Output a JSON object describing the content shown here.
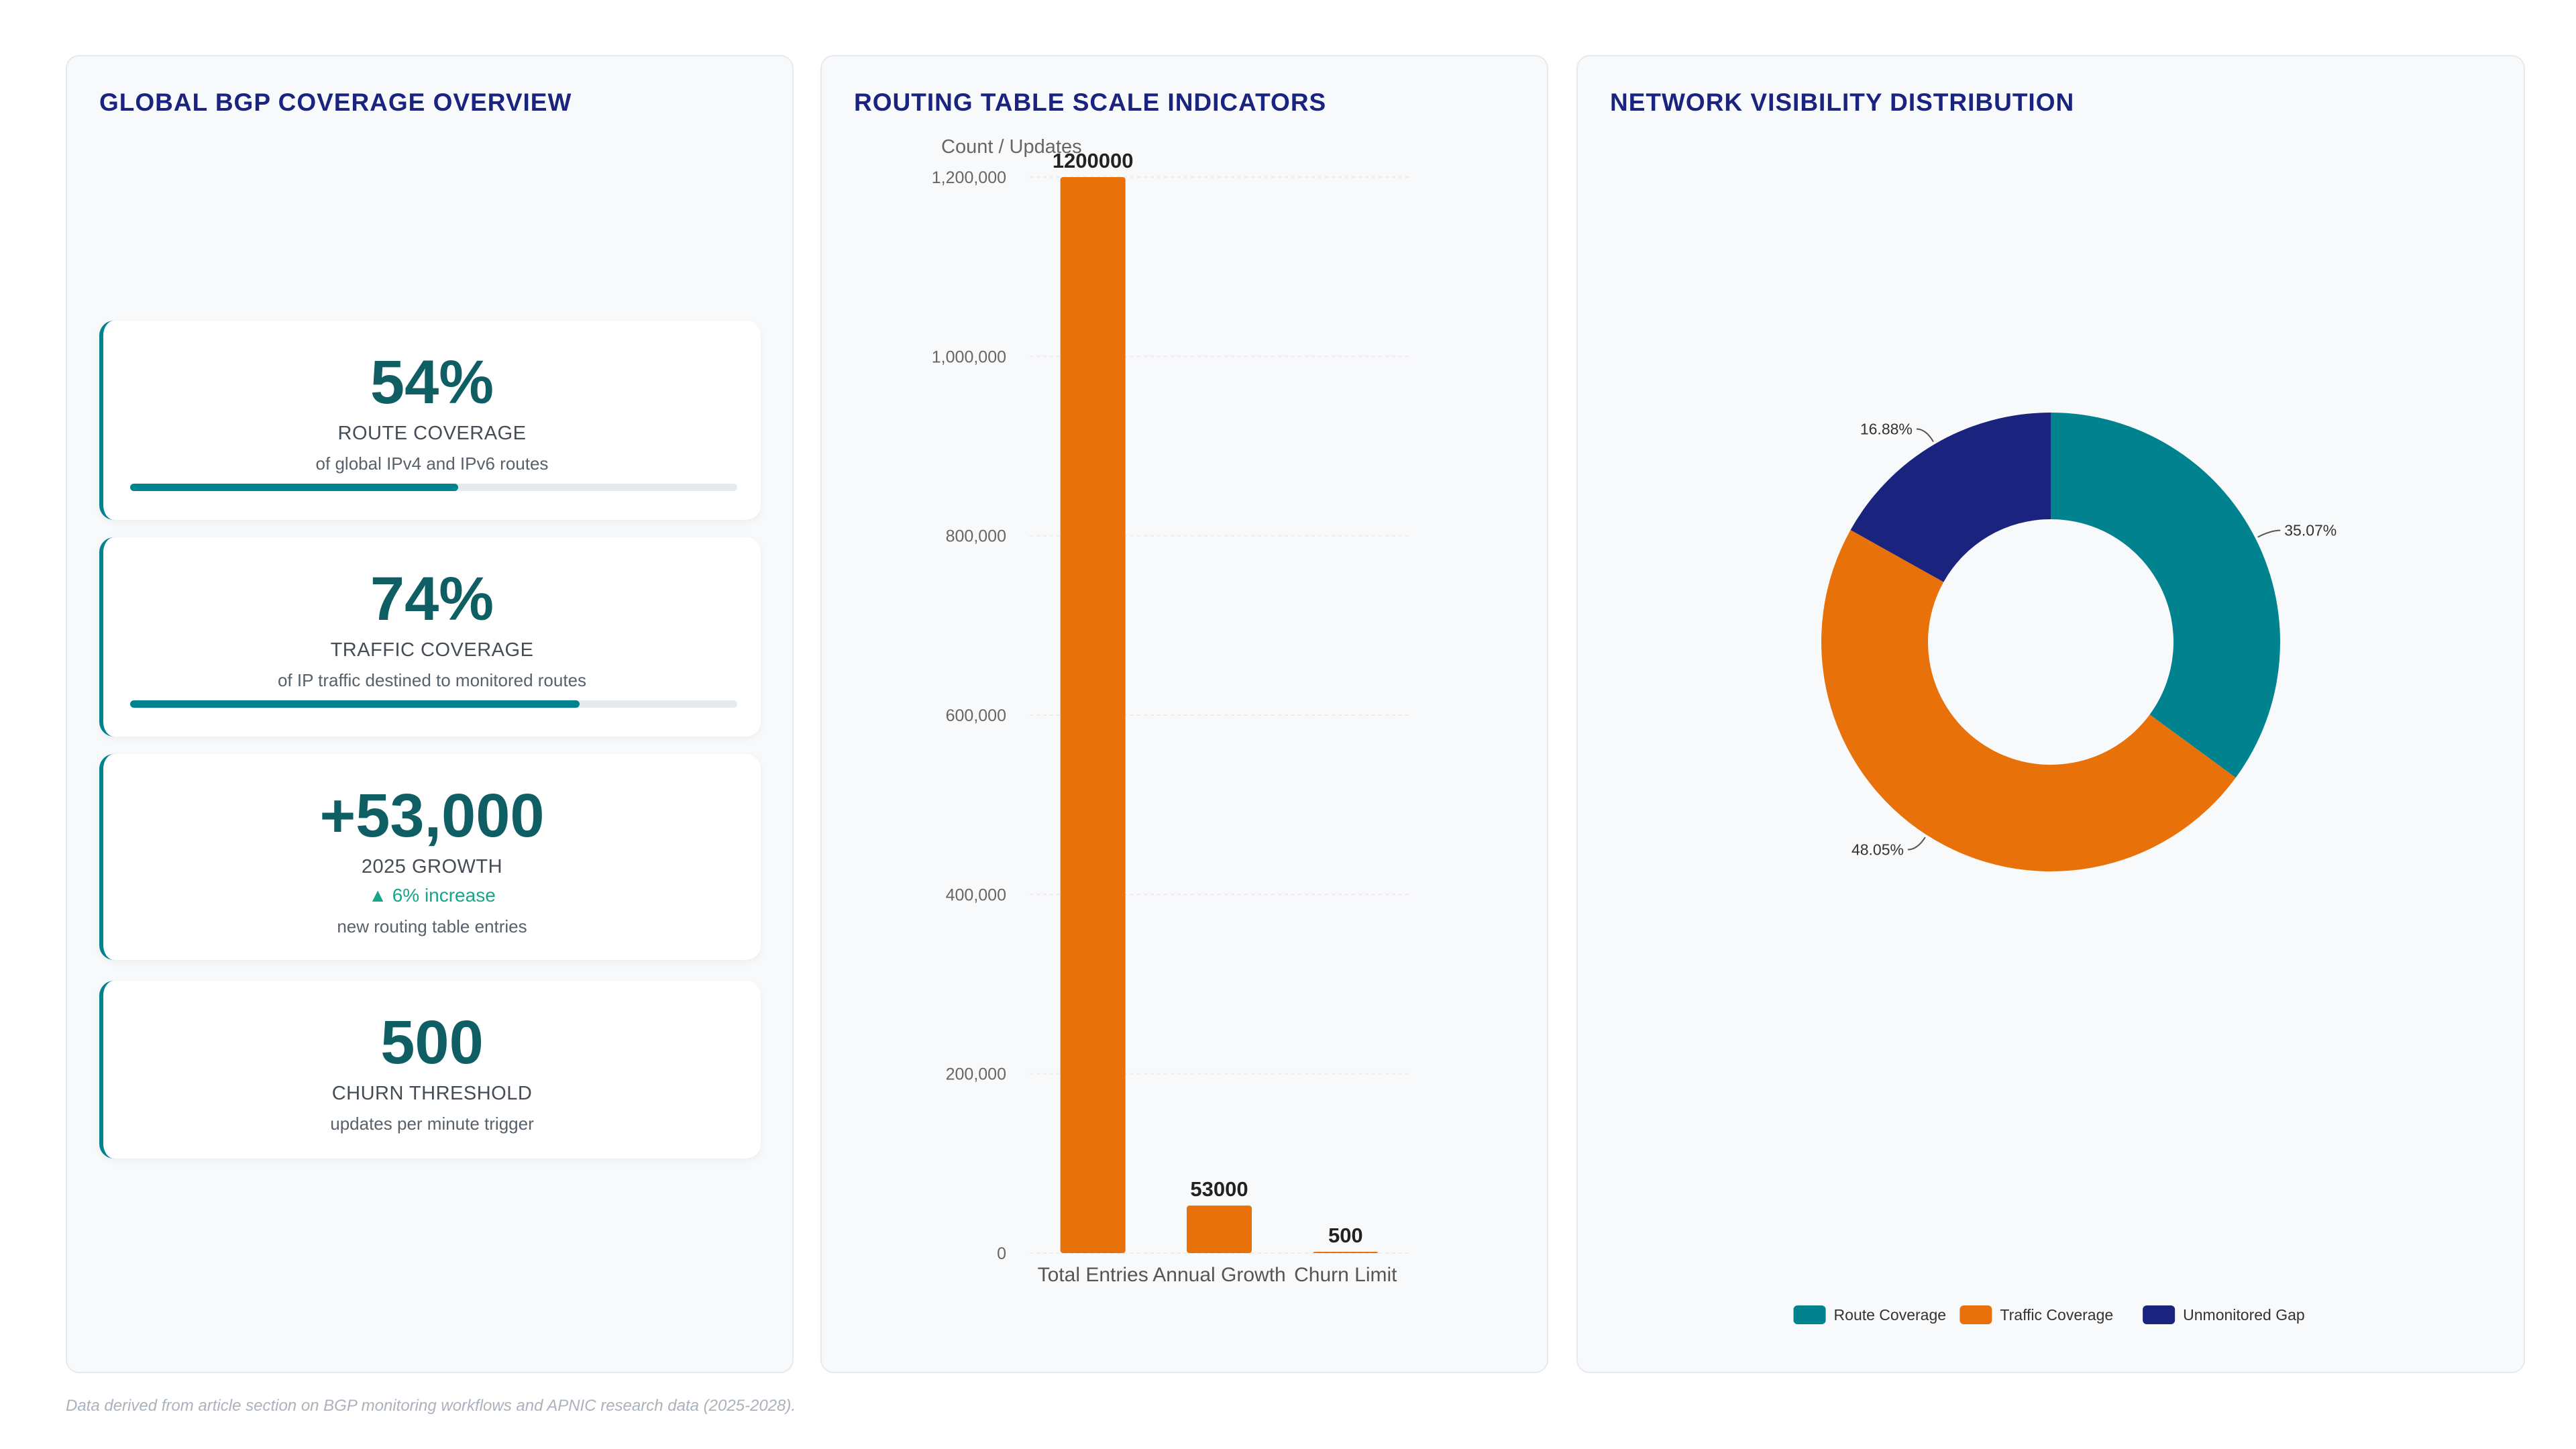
{
  "panels": {
    "coverage": {
      "title": "GLOBAL BGP COVERAGE OVERVIEW",
      "cards": [
        {
          "value": "54%",
          "label": "ROUTE COVERAGE",
          "subtitle": "of global IPv4 and IPv6 routes",
          "progress": 0.54
        },
        {
          "value": "74%",
          "label": "TRAFFIC COVERAGE",
          "subtitle": "of IP traffic destined to monitored routes",
          "progress": 0.74
        },
        {
          "value": "+53,000",
          "label": "2025 GROWTH",
          "trend": "▲ 6% increase",
          "subtitle": "new routing table entries"
        },
        {
          "value": "500",
          "label": "CHURN THRESHOLD",
          "subtitle": "updates per minute trigger"
        }
      ]
    },
    "scale": {
      "title": "ROUTING TABLE SCALE INDICATORS"
    },
    "visibility": {
      "title": "NETWORK VISIBILITY DISTRIBUTION"
    }
  },
  "chart_data": [
    {
      "type": "bar",
      "ylabel": "Count / Updates",
      "categories": [
        "Total Entries",
        "Annual Growth",
        "Churn Limit"
      ],
      "values": [
        1200000,
        53000,
        500
      ],
      "data_labels": [
        "1200000",
        "53000",
        "500"
      ],
      "ylim": [
        0,
        1200000
      ],
      "yticks": [
        0,
        200000,
        400000,
        600000,
        800000,
        1000000,
        1200000
      ],
      "ytick_labels": [
        "0",
        "200,000",
        "400,000",
        "600,000",
        "800,000",
        "1,000,000",
        "1,200,000"
      ],
      "color": "#e8710a",
      "grid": true
    },
    {
      "type": "pie",
      "donut": true,
      "labels": [
        "Route Coverage",
        "Traffic Coverage",
        "Unmonitored Gap"
      ],
      "values": [
        35.07,
        48.05,
        16.88
      ],
      "value_labels": [
        "35.07%",
        "48.05%",
        "16.88%"
      ],
      "colors": [
        "#00838f",
        "#e8710a",
        "#1a237e"
      ],
      "legend_position": "bottom"
    }
  ],
  "footnote": "Data derived from article section on BGP monitoring workflows and APNIC research data (2025-2028)."
}
